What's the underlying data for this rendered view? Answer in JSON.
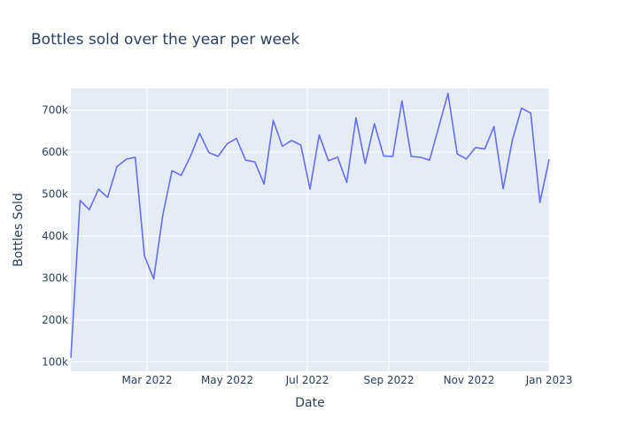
{
  "chart_data": {
    "type": "line",
    "title": "Bottles sold over the year per week",
    "xlabel": "Date",
    "ylabel": "Bottles Sold",
    "x_range": [
      "2022-01-02",
      "2023-01-01"
    ],
    "ylim": [
      78000,
      752000
    ],
    "grid": true,
    "legend": "none",
    "x_ticks": [
      {
        "date": "2022-03-01",
        "label": "Mar 2022"
      },
      {
        "date": "2022-05-01",
        "label": "May 2022"
      },
      {
        "date": "2022-07-01",
        "label": "Jul 2022"
      },
      {
        "date": "2022-09-01",
        "label": "Sep 2022"
      },
      {
        "date": "2022-11-01",
        "label": "Nov 2022"
      },
      {
        "date": "2023-01-01",
        "label": "Jan 2023"
      }
    ],
    "y_ticks": [
      {
        "value": 100000,
        "label": "100k"
      },
      {
        "value": 200000,
        "label": "200k"
      },
      {
        "value": 300000,
        "label": "300k"
      },
      {
        "value": 400000,
        "label": "400k"
      },
      {
        "value": 500000,
        "label": "500k"
      },
      {
        "value": 600000,
        "label": "600k"
      },
      {
        "value": 700000,
        "label": "700k"
      }
    ],
    "series": [
      {
        "color": "#636efa",
        "x": [
          "2022-01-02",
          "2022-01-09",
          "2022-01-16",
          "2022-01-23",
          "2022-01-30",
          "2022-02-06",
          "2022-02-13",
          "2022-02-20",
          "2022-02-27",
          "2022-03-06",
          "2022-03-13",
          "2022-03-20",
          "2022-03-27",
          "2022-04-03",
          "2022-04-10",
          "2022-04-17",
          "2022-04-24",
          "2022-05-01",
          "2022-05-08",
          "2022-05-15",
          "2022-05-22",
          "2022-05-29",
          "2022-06-05",
          "2022-06-12",
          "2022-06-19",
          "2022-06-26",
          "2022-07-03",
          "2022-07-10",
          "2022-07-17",
          "2022-07-24",
          "2022-07-31",
          "2022-08-07",
          "2022-08-14",
          "2022-08-21",
          "2022-08-28",
          "2022-09-04",
          "2022-09-11",
          "2022-09-18",
          "2022-09-25",
          "2022-10-02",
          "2022-10-16",
          "2022-10-23",
          "2022-10-30",
          "2022-11-06",
          "2022-11-13",
          "2022-11-20",
          "2022-11-27",
          "2022-12-04",
          "2022-12-11",
          "2022-12-18",
          "2022-12-25",
          "2023-01-01"
        ],
        "y": [
          110000,
          485000,
          463000,
          512000,
          492000,
          565000,
          583000,
          588000,
          353000,
          298000,
          450000,
          556000,
          545000,
          590000,
          645000,
          599000,
          590000,
          620000,
          633000,
          581000,
          577000,
          524000,
          676000,
          614000,
          628000,
          617000,
          512000,
          641000,
          580000,
          588000,
          528000,
          682000,
          573000,
          668000,
          591000,
          590000,
          722000,
          590000,
          588000,
          581000,
          740000,
          596000,
          584000,
          611000,
          608000,
          661000,
          513000,
          629000,
          705000,
          693000,
          480000,
          583000
        ]
      }
    ]
  }
}
